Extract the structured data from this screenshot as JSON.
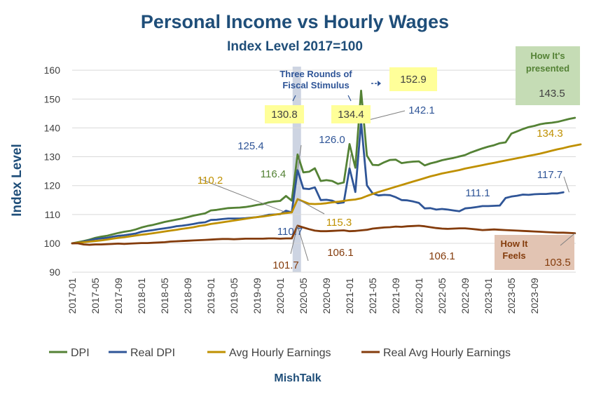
{
  "chart_data": {
    "type": "line",
    "title": "Personal Income vs Hourly Wages",
    "subtitle": "Index Level 2017=100",
    "ylabel": "Index Level",
    "xlabel": "",
    "ylim": [
      90,
      160
    ],
    "y_ticks": [
      "90",
      "100",
      "110",
      "120",
      "130",
      "140",
      "150",
      "160"
    ],
    "x_tick_labels": [
      "2017-01",
      "2017-05",
      "2017-09",
      "2018-01",
      "2018-05",
      "2018-09",
      "2019-01",
      "2019-05",
      "2019-09",
      "2020-01",
      "2020-05",
      "2020-09",
      "2021-01",
      "2021-05",
      "2021-09",
      "2022-01",
      "2022-05",
      "2022-09",
      "2023-01",
      "2023-05",
      "2023-09"
    ],
    "grid": true,
    "legend_position": "bottom",
    "series": [
      {
        "name": "DPI",
        "color": "#548235",
        "values": [
          100,
          100.4,
          100.8,
          101.3,
          101.9,
          102.3,
          102.6,
          103.1,
          103.6,
          104,
          104.3,
          104.8,
          105.5,
          106,
          106.4,
          106.9,
          107.4,
          107.8,
          108.2,
          108.6,
          109.1,
          109.6,
          110,
          110.4,
          111.4,
          111.6,
          111.9,
          112.2,
          112.3,
          112.4,
          112.6,
          112.9,
          113.3,
          113.6,
          114.2,
          114.5,
          114.7,
          116.4,
          114.8,
          130.8,
          124.6,
          124.8,
          126,
          121.6,
          121.9,
          121.6,
          120.6,
          121.1,
          134.4,
          126.2,
          152.9,
          130.4,
          127.2,
          127.1,
          128.1,
          128.9,
          129,
          127.8,
          128.1,
          128.3,
          128.4,
          127,
          127.7,
          128.2,
          128.8,
          129.2,
          129.6,
          130.1,
          130.6,
          131.5,
          132.2,
          132.9,
          133.5,
          134,
          134.7,
          135,
          138,
          138.8,
          139.6,
          140.3,
          140.7,
          141.3,
          141.6,
          141.8,
          142.1,
          142.6,
          143.1,
          143.5
        ]
      },
      {
        "name": "Real DPI",
        "color": "#2f5597",
        "values": [
          100,
          100.2,
          100.6,
          101,
          101.5,
          101.7,
          101.9,
          102.3,
          102.6,
          102.8,
          103.1,
          103.4,
          104,
          104.3,
          104.6,
          104.9,
          105.2,
          105.5,
          105.9,
          106.1,
          106.4,
          106.7,
          107.1,
          107.3,
          108.1,
          108.2,
          108.4,
          108.6,
          108.6,
          108.6,
          108.7,
          108.9,
          109.1,
          109.4,
          109.9,
          110,
          110.1,
          111.3,
          110.7,
          125.4,
          119,
          118.8,
          119.4,
          115,
          115.1,
          114.8,
          113.9,
          114.2,
          126,
          117.8,
          142.1,
          120.1,
          117.3,
          116.6,
          116.8,
          116.7,
          116,
          115,
          114.9,
          114.5,
          114,
          112.1,
          112.2,
          111.7,
          111.9,
          111.7,
          111.4,
          111.1,
          112.1,
          112.3,
          112.6,
          112.9,
          112.9,
          113,
          113.1,
          115.7,
          116.2,
          116.5,
          116.9,
          116.8,
          117,
          117.1,
          117.1,
          117.3,
          117.3,
          117.7
        ]
      },
      {
        "name": "Avg Hourly Earnings",
        "color": "#bf9000",
        "values": [
          100,
          100.2,
          100.4,
          100.6,
          100.8,
          101,
          101.3,
          101.6,
          101.9,
          102.1,
          102.4,
          102.7,
          103,
          103.2,
          103.5,
          103.8,
          104.1,
          104.4,
          104.7,
          105,
          105.3,
          105.6,
          106,
          106.3,
          106.7,
          107,
          107.3,
          107.6,
          107.9,
          108.2,
          108.5,
          108.8,
          109.1,
          109.3,
          109.6,
          109.9,
          110.2,
          110.5,
          110.7,
          115.3,
          114.5,
          113.7,
          113.6,
          113.7,
          113.9,
          114.2,
          114.4,
          114.7,
          115,
          115.2,
          115.6,
          116.4,
          117.1,
          117.8,
          118.4,
          119,
          119.6,
          120.2,
          120.8,
          121.4,
          122,
          122.6,
          123.2,
          123.7,
          124.2,
          124.6,
          125,
          125.4,
          125.9,
          126.3,
          126.7,
          127.1,
          127.5,
          127.9,
          128.3,
          128.7,
          129.1,
          129.5,
          129.9,
          130.3,
          130.7,
          131.1,
          131.6,
          132.1,
          132.6,
          133,
          133.5,
          133.9,
          134.3
        ]
      },
      {
        "name": "Real Avg Hourly Earnings",
        "color": "#843c0c",
        "values": [
          100,
          100,
          99.6,
          99.5,
          99.6,
          99.6,
          99.7,
          99.8,
          99.9,
          99.8,
          99.9,
          100,
          100.1,
          100.1,
          100.2,
          100.3,
          100.4,
          100.6,
          100.7,
          100.8,
          100.9,
          101,
          101.1,
          101.2,
          101.3,
          101.4,
          101.5,
          101.5,
          101.4,
          101.5,
          101.6,
          101.6,
          101.6,
          101.6,
          101.7,
          101.7,
          101.6,
          101.7,
          101.7,
          106.1,
          105.5,
          104.9,
          104.4,
          104.2,
          104.2,
          104.3,
          104.4,
          104.5,
          104.2,
          104.3,
          104.5,
          104.7,
          105.1,
          105.3,
          105.5,
          105.6,
          105.8,
          105.7,
          105.9,
          106,
          106.1,
          105.9,
          105.6,
          105.3,
          105.1,
          105,
          105.1,
          105.2,
          105.2,
          105,
          104.8,
          104.6,
          104.7,
          104.8,
          104.7,
          104.6,
          104.5,
          104.4,
          104.3,
          104.2,
          104.1,
          104,
          103.9,
          103.8,
          103.7,
          103.7,
          103.6,
          103.5
        ]
      }
    ],
    "annotations": [
      {
        "text": "130.8",
        "color": "#404040",
        "highlight": "#ffff99"
      },
      {
        "text": "134.4",
        "color": "#404040",
        "highlight": "#ffff99"
      },
      {
        "text": "152.9",
        "color": "#404040",
        "highlight": "#ffff99"
      },
      {
        "text": "125.4",
        "color": "#2f5597"
      },
      {
        "text": "126.0",
        "color": "#2f5597"
      },
      {
        "text": "142.1",
        "color": "#2f5597"
      },
      {
        "text": "116.4",
        "color": "#548235"
      },
      {
        "text": "110.2",
        "color": "#bf9000"
      },
      {
        "text": "115.3",
        "color": "#bf9000"
      },
      {
        "text": "134.3",
        "color": "#bf9000"
      },
      {
        "text": "111.1",
        "color": "#2f5597"
      },
      {
        "text": "117.7",
        "color": "#2f5597"
      },
      {
        "text": "110.7",
        "color": "#2f5597"
      },
      {
        "text": "106.1",
        "color": "#843c0c"
      },
      {
        "text": "106.1",
        "color": "#843c0c"
      },
      {
        "text": "101.7",
        "color": "#843c0c"
      },
      {
        "text": "143.5",
        "color": "#404040"
      },
      {
        "text": "103.5",
        "color": "#843c0c"
      }
    ],
    "stimulus_label": [
      "Three Rounds of",
      "Fiscal Stimulus"
    ],
    "presented_box": {
      "lines": [
        "How It's",
        "presented"
      ],
      "color": "#548235",
      "fill": "#c5dcb5"
    },
    "feels_box": {
      "lines": [
        "How It",
        "Feels"
      ],
      "color": "#843c0c",
      "fill": "#e2c4b3"
    },
    "source": "MishTalk"
  }
}
